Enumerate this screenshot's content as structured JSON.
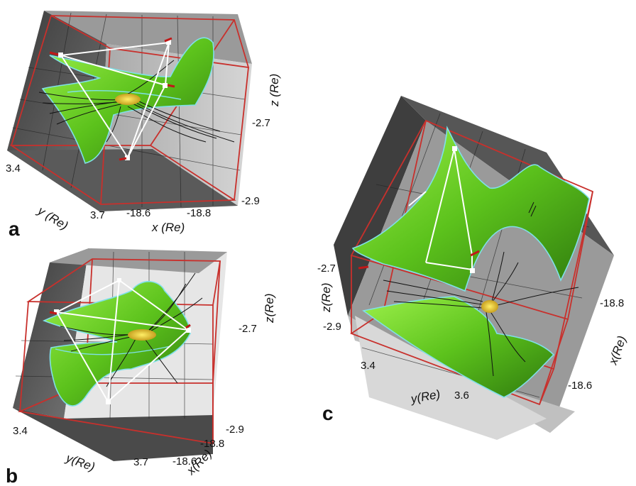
{
  "panels": [
    {
      "letter": "a",
      "axis_labels": {
        "x": "x (Re)",
        "y": "y (Re)",
        "z": "z (Re)"
      },
      "ticks": {
        "y": [
          "3.4",
          "3.7"
        ],
        "x": [
          "-18.6",
          "-18.8"
        ],
        "z": [
          "-2.7",
          "-2.9"
        ]
      }
    },
    {
      "letter": "b",
      "axis_labels": {
        "x": "x(Re)",
        "y": "y(Re)",
        "z": "z(Re)"
      },
      "ticks": {
        "y": [
          "3.4",
          "3.7"
        ],
        "x": [
          "-18.6",
          "-18.8"
        ],
        "z": [
          "-2.7",
          "-2.9"
        ]
      }
    },
    {
      "letter": "c",
      "axis_labels": {
        "x": "x(Re)",
        "y": "y(Re)",
        "z": "z(Re)"
      },
      "ticks": {
        "y": [
          "3.4",
          "3.6"
        ],
        "x": [
          "-18.8",
          "-18.6"
        ],
        "z": [
          "-2.7",
          "-2.9"
        ]
      }
    }
  ],
  "colors": {
    "box_dark": "#4a4a4a",
    "box_mid": "#8c8c8c",
    "box_light": "#c8c8c8",
    "grid": "#2a2a2a",
    "frame": "#c8302c",
    "surface": "#66cc22",
    "surface_edge": "#7fe0e8",
    "field_lines": "#111111"
  }
}
